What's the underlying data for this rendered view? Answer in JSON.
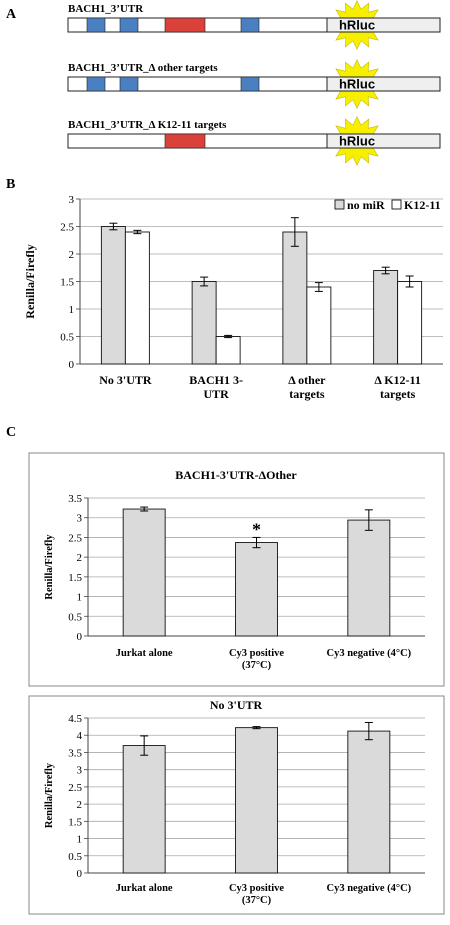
{
  "panels": {
    "a": "A",
    "b": "B",
    "c": "C"
  },
  "constructs": [
    {
      "label": "BACH1_3’UTR",
      "sites": [
        "blue",
        "blue",
        "red",
        "blue"
      ],
      "reporter": "hRluc"
    },
    {
      "label": "BACH1_3’UTR_Δ other targets",
      "sites": [
        "blue",
        "blue",
        null,
        "blue"
      ],
      "reporter": "hRluc"
    },
    {
      "label": "BACH1_3’UTR_Δ K12-11 targets",
      "sites": [
        null,
        null,
        "red",
        null
      ],
      "reporter": "hRluc"
    }
  ],
  "colors": {
    "blue": "#4a7fc1",
    "red": "#d9413a",
    "bar_grey": "#dadada",
    "bar_white": "#ffffff",
    "burst": "#f6f000"
  },
  "chart_data": [
    {
      "type": "bar",
      "ylabel": "Renilla/Firefly",
      "ylim": [
        0,
        3
      ],
      "yticks": [
        "0",
        "0.5",
        "1",
        "1.5",
        "2",
        "2.5",
        "3"
      ],
      "categories": [
        "No 3'UTR",
        "BACH1 3-\nUTR",
        "Δ other\ntargets",
        "Δ K12-11\ntargets"
      ],
      "legend_position": "top-right",
      "series": [
        {
          "name": "no miR",
          "values": [
            2.5,
            1.5,
            2.4,
            1.7
          ],
          "errors": [
            0.06,
            0.08,
            0.26,
            0.06
          ]
        },
        {
          "name": "K12-11",
          "values": [
            2.4,
            0.5,
            1.4,
            1.5
          ],
          "errors": [
            0.03,
            0.02,
            0.08,
            0.1
          ]
        }
      ]
    },
    {
      "type": "bar",
      "title": "BACH1-3'UTR-ΔOther",
      "ylabel": "Renilla/Firefly",
      "ylim": [
        0,
        3.5
      ],
      "yticks": [
        "0",
        "0.5",
        "1",
        "1.5",
        "2",
        "2.5",
        "3",
        "3.5"
      ],
      "categories": [
        "Jurkat alone",
        "Cy3 positive\n(37°C)",
        "Cy3 negative (4°C)"
      ],
      "values": [
        3.22,
        2.37,
        2.94
      ],
      "errors": [
        0.05,
        0.13,
        0.26
      ],
      "annotations": [
        "",
        "*",
        ""
      ]
    },
    {
      "type": "bar",
      "title": "No 3'UTR",
      "ylabel": "Renilla/Firefly",
      "ylim": [
        0,
        4.5
      ],
      "yticks": [
        "0",
        "0.5",
        "1",
        "1.5",
        "2",
        "2.5",
        "3",
        "3.5",
        "4",
        "4.5"
      ],
      "categories": [
        "Jurkat alone",
        "Cy3 positive\n(37°C)",
        "Cy3 negative (4°C)"
      ],
      "values": [
        3.7,
        4.22,
        4.12
      ],
      "errors": [
        0.28,
        0.03,
        0.25
      ],
      "annotations": [
        "",
        "",
        ""
      ]
    }
  ]
}
